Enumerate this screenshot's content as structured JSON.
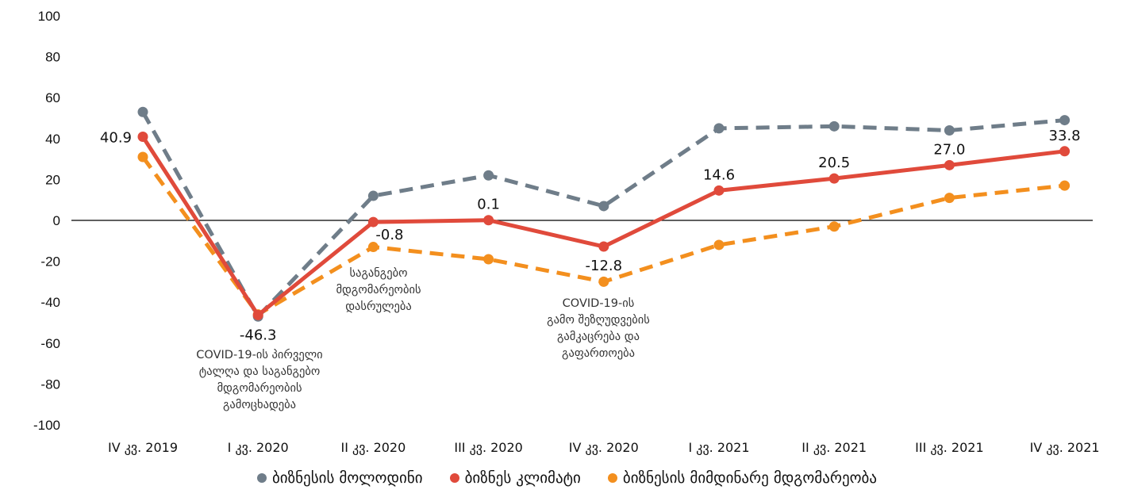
{
  "chart_data": {
    "type": "line",
    "title": "",
    "xlabel": "",
    "ylabel": "",
    "ylim": [
      -100,
      100
    ],
    "yticks": [
      "100",
      "80",
      "60",
      "40",
      "20",
      "0",
      "-20",
      "-40",
      "-60",
      "-80",
      "-100"
    ],
    "ytick_values": [
      100,
      80,
      60,
      40,
      20,
      0,
      -20,
      -40,
      -60,
      -80,
      -100
    ],
    "categories": [
      "IV კვ. 2019",
      "I კვ. 2020",
      "II კვ. 2020",
      "III კვ. 2020",
      "IV კვ. 2020",
      "I კვ. 2021",
      "II კვ. 2021",
      "III კვ. 2021",
      "IV კვ. 2021"
    ],
    "zero_line": true,
    "grid": false,
    "legend_position": "bottom",
    "series": [
      {
        "name": "ბიზნესის მოლოდინი",
        "color": "#6f7d89",
        "style": "dashed",
        "values": [
          53,
          -47,
          12,
          22,
          7,
          45,
          46,
          44,
          49
        ]
      },
      {
        "name": "ბიზნეს კლიმატი",
        "color": "#e04a3b",
        "style": "solid",
        "values": [
          40.9,
          -46.3,
          -0.8,
          0.1,
          -12.8,
          14.6,
          20.5,
          27.0,
          33.8
        ],
        "data_labels": [
          "40.9",
          "-46.3",
          "-0.8",
          "0.1",
          "-12.8",
          "14.6",
          "20.5",
          "27.0",
          "33.8"
        ]
      },
      {
        "name": "ბიზნესის მიმდინარე მდგომარეობა",
        "color": "#f38f1e",
        "style": "dashed",
        "values": [
          31,
          -46,
          -13,
          -19,
          -30,
          -12,
          -3,
          11,
          17
        ]
      }
    ],
    "annotations": [
      {
        "category": "I კვ. 2020",
        "lines": [
          "COVID-19-ის პირველი",
          "ტალღა და საგანგებო",
          "მდგომარეობის",
          "გამოცხადება"
        ]
      },
      {
        "category": "II კვ. 2020",
        "lines": [
          "საგანგებო",
          "მდგომარეობის",
          "დასრულება"
        ]
      },
      {
        "category": "IV კვ. 2020",
        "lines": [
          "COVID-19-ის",
          "გამო შეზღუდვების",
          "გამკაცრება და",
          "გაფართოება"
        ]
      }
    ]
  }
}
